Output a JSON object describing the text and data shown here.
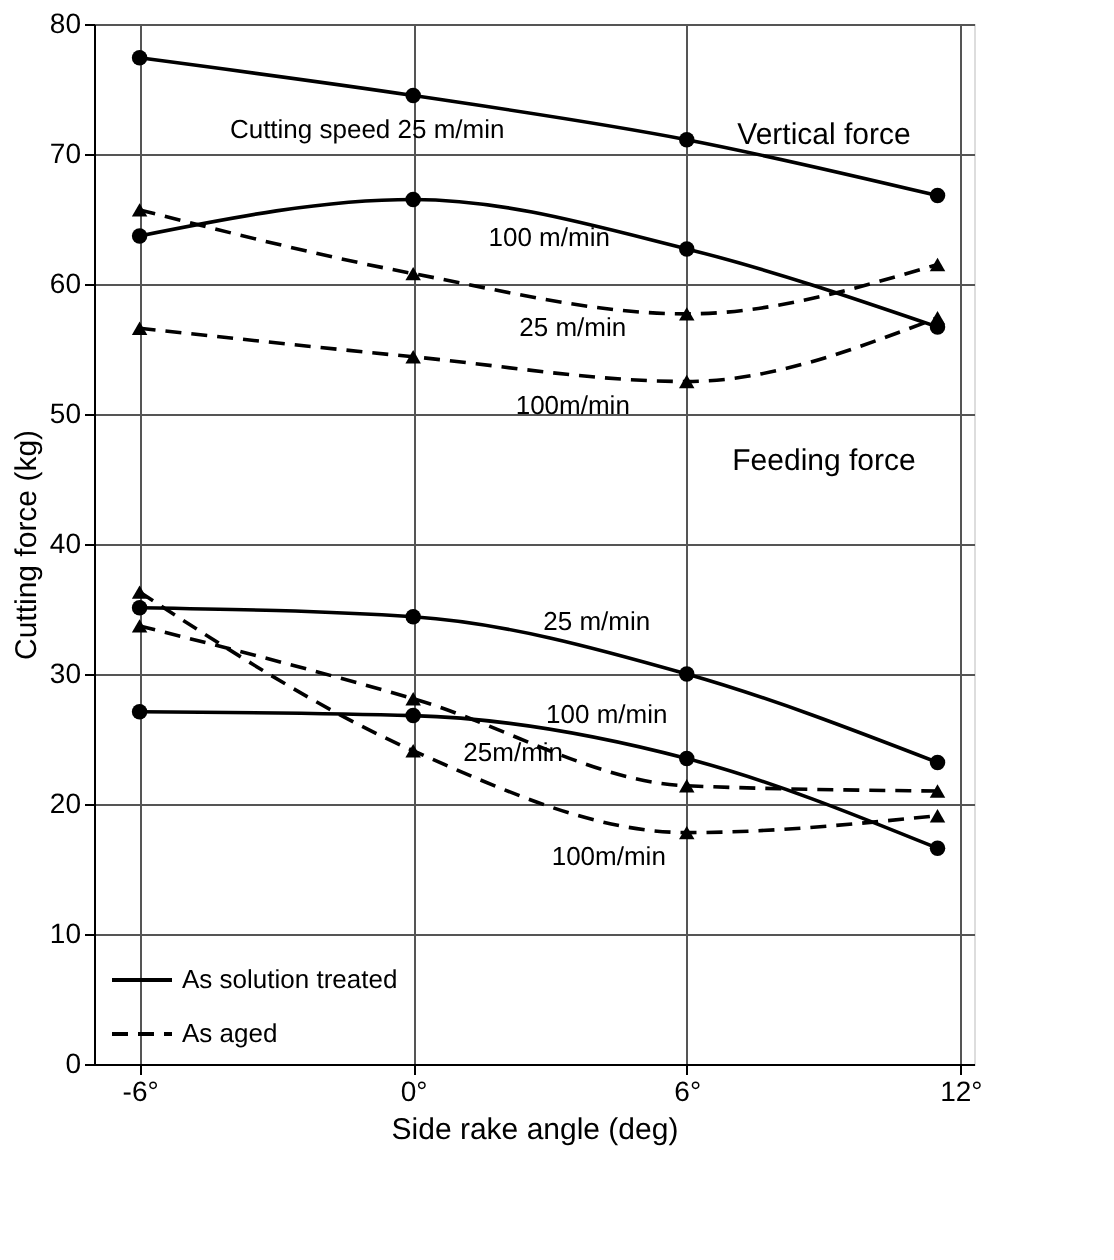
{
  "chart_data": {
    "type": "line",
    "xlabel": "Side rake angle (deg)",
    "ylabel": "Cutting force (kg)",
    "xlim": [
      -7,
      12.3
    ],
    "ylim": [
      0,
      80
    ],
    "xticks": [
      {
        "value": -6,
        "label": "-6°"
      },
      {
        "value": 0,
        "label": "0°"
      },
      {
        "value": 6,
        "label": "6°"
      },
      {
        "value": 12,
        "label": "12°"
      }
    ],
    "yticks": [
      0,
      10,
      20,
      30,
      40,
      50,
      60,
      70,
      80
    ],
    "grid": true,
    "x": [
      -6,
      0,
      6,
      11.5
    ],
    "annotations": [
      "Vertical force",
      "Feeding force",
      "As solution treated",
      "As aged",
      "Cutting speed 25 m/min",
      "100 m/min",
      "25 m/min",
      "100m/min",
      "25 m/min",
      "100 m/min",
      "25m/min",
      "100m/min"
    ],
    "series": [
      {
        "color": "#000000",
        "marker": "circle",
        "line_style": "solid",
        "values": [
          77.4,
          74.5,
          71.1,
          66.8
        ]
      },
      {
        "color": "#000000",
        "marker": "circle",
        "line_style": "solid",
        "values": [
          63.7,
          66.5,
          62.7,
          56.7
        ]
      },
      {
        "color": "#000000",
        "marker": "triangle",
        "line_style": "dashed",
        "values": [
          65.7,
          60.8,
          57.7,
          61.5
        ]
      },
      {
        "color": "#000000",
        "marker": "triangle",
        "line_style": "dashed",
        "values": [
          56.6,
          54.4,
          52.5,
          57.4
        ]
      },
      {
        "color": "#000000",
        "marker": "circle",
        "line_style": "solid",
        "values": [
          35.1,
          34.4,
          30.0,
          23.2
        ]
      },
      {
        "color": "#000000",
        "marker": "circle",
        "line_style": "solid",
        "values": [
          27.1,
          26.8,
          23.5,
          16.6
        ]
      },
      {
        "color": "#000000",
        "marker": "triangle",
        "line_style": "dashed",
        "values": [
          33.7,
          28.1,
          21.4,
          21.0
        ]
      },
      {
        "color": "#000000",
        "marker": "triangle",
        "line_style": "dashed",
        "values": [
          36.3,
          24.1,
          17.8,
          19.1
        ]
      }
    ]
  }
}
